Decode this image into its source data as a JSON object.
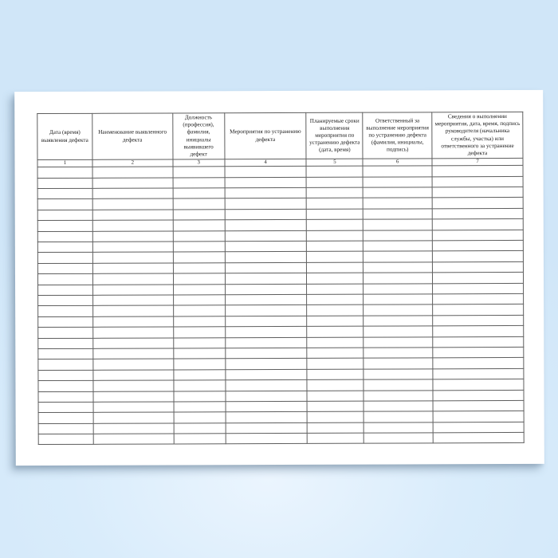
{
  "document": {
    "kind": "defect-log-form",
    "table": {
      "columns": [
        {
          "number": "1",
          "label": "Дата (время) выявления дефекта"
        },
        {
          "number": "2",
          "label": "Наименование выявленного дефекта"
        },
        {
          "number": "3",
          "label": "Должность (профессия), фамилия, инициалы выявившего дефект"
        },
        {
          "number": "4",
          "label": "Мероприятия по устранению дефекта"
        },
        {
          "number": "5",
          "label": "Планируемые сроки выполнения мероприятия по устранению дефекта (дата, время)"
        },
        {
          "number": "6",
          "label": "Ответственный за выполнение мероприятия по устранению дефекта (фамилия, инициалы, подпись)"
        },
        {
          "number": "7",
          "label": "Сведения о выполнении мероприятия, дата, время, подпись руководителя (начальника службы, участка) или ответственного за устранение дефекта"
        }
      ],
      "empty_row_count": 26,
      "cell_values": []
    },
    "colors": {
      "backdrop_center": "#ebf5fe",
      "backdrop_mid": "#d9ecfb",
      "backdrop_edge": "#d0e6f8",
      "paper": "#ffffff",
      "table_border": "#5e5e5e",
      "text": "#1c1c1c"
    }
  }
}
